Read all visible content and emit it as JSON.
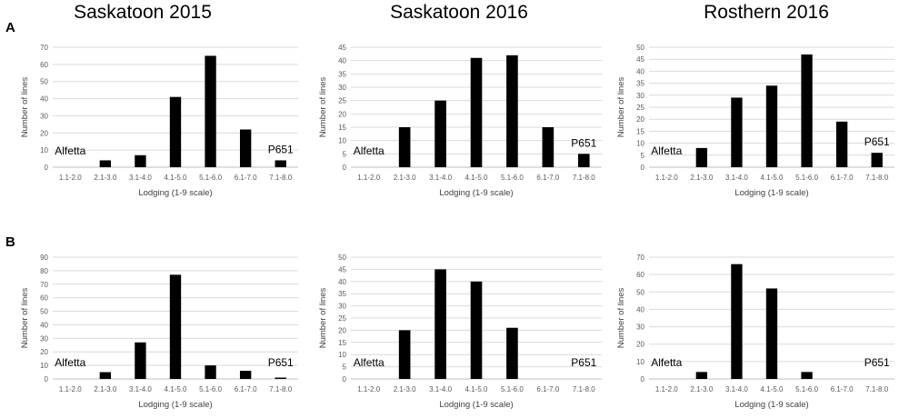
{
  "titles": [
    "Saskatoon 2015",
    "Saskatoon 2016",
    "Rosthern 2016"
  ],
  "row_labels": [
    "A",
    "B"
  ],
  "chart_data": [
    {
      "type": "bar",
      "panel": "A",
      "column_title": "Saskatoon 2015",
      "categories": [
        "1.1-2.0",
        "2.1-3.0",
        "3.1-4.0",
        "4.1-5.0",
        "5.1-6.0",
        "6.1-7.0",
        "7.1-8.0"
      ],
      "values": [
        0,
        4,
        7,
        41,
        65,
        22,
        4
      ],
      "xlabel": "Lodging  (1-9 scale)",
      "ylabel": "Number of lines",
      "ylim": [
        0,
        70
      ],
      "ytick_step": 10,
      "grid": true,
      "annotations": [
        {
          "text": "Alfetta",
          "category": "1.1-2.0"
        },
        {
          "text": "P651",
          "category": "7.1-8.0"
        }
      ]
    },
    {
      "type": "bar",
      "panel": "A",
      "column_title": "Saskatoon 2016",
      "categories": [
        "1.1-2.0",
        "2.1-3.0",
        "3.1-4.0",
        "4.1-5.0",
        "5.1-6.0",
        "6.1-7.0",
        "7.1-8.0"
      ],
      "values": [
        0,
        15,
        25,
        41,
        42,
        15,
        5
      ],
      "xlabel": "Lodging  (1-9 scale)",
      "ylabel": "Number of lines",
      "ylim": [
        0,
        45
      ],
      "ytick_step": 5,
      "grid": true,
      "annotations": [
        {
          "text": "Alfetta",
          "category": "1.1-2.0"
        },
        {
          "text": "P651",
          "category": "7.1-8.0"
        }
      ]
    },
    {
      "type": "bar",
      "panel": "A",
      "column_title": "Rosthern 2016",
      "categories": [
        "1.1-2.0",
        "2.1-3.0",
        "3.1-4.0",
        "4.1-5.0",
        "5.1-6.0",
        "6.1-7.0",
        "7.1-8.0"
      ],
      "values": [
        0,
        8,
        29,
        34,
        47,
        19,
        6
      ],
      "xlabel": "Lodging  (1-9 scale)",
      "ylabel": "Number of lines",
      "ylim": [
        0,
        50
      ],
      "ytick_step": 5,
      "grid": true,
      "annotations": [
        {
          "text": "Alfetta",
          "category": "1.1-2.0"
        },
        {
          "text": "P651",
          "category": "7.1-8.0"
        }
      ]
    },
    {
      "type": "bar",
      "panel": "B",
      "column_title": "Saskatoon 2015",
      "categories": [
        "1.1-2.0",
        "2.1-3.0",
        "3.1-4.0",
        "4.1-5.0",
        "5.1-6.0",
        "6.1-7.0",
        "7.1-8.0"
      ],
      "values": [
        0,
        5,
        27,
        77,
        10,
        6,
        1
      ],
      "xlabel": "Lodging  (1-9 scale)",
      "ylabel": "Number of lines",
      "ylim": [
        0,
        90
      ],
      "ytick_step": 10,
      "grid": true,
      "annotations": [
        {
          "text": "Alfetta",
          "category": "1.1-2.0"
        },
        {
          "text": "P651",
          "category": "7.1-8.0"
        }
      ]
    },
    {
      "type": "bar",
      "panel": "B",
      "column_title": "Saskatoon 2016",
      "categories": [
        "1.1-2.0",
        "2.1-3.0",
        "3.1-4.0",
        "4.1-5.0",
        "5.1-6.0",
        "6.1-7.0",
        "7.1-8.0"
      ],
      "values": [
        0,
        20,
        45,
        40,
        21,
        0,
        0
      ],
      "xlabel": "Lodging  (1-9 scale)",
      "ylabel": "Number of lines",
      "ylim": [
        0,
        50
      ],
      "ytick_step": 5,
      "grid": true,
      "annotations": [
        {
          "text": "Alfetta",
          "category": "1.1-2.0"
        },
        {
          "text": "P651",
          "category": "7.1-8.0"
        }
      ]
    },
    {
      "type": "bar",
      "panel": "B",
      "column_title": "Rosthern 2016",
      "categories": [
        "1.1-2.0",
        "2.1-3.0",
        "3.1-4.0",
        "4.1-5.0",
        "5.1-6.0",
        "6.1-7.0",
        "7.1-8.0"
      ],
      "values": [
        0,
        4,
        66,
        52,
        4,
        0,
        0
      ],
      "xlabel": "Lodging  (1-9 scale)",
      "ylabel": "Number of lines",
      "ylim": [
        0,
        70
      ],
      "ytick_step": 10,
      "grid": true,
      "annotations": [
        {
          "text": "Alfetta",
          "category": "1.1-2.0"
        },
        {
          "text": "P651",
          "category": "7.1-8.0"
        }
      ]
    }
  ]
}
